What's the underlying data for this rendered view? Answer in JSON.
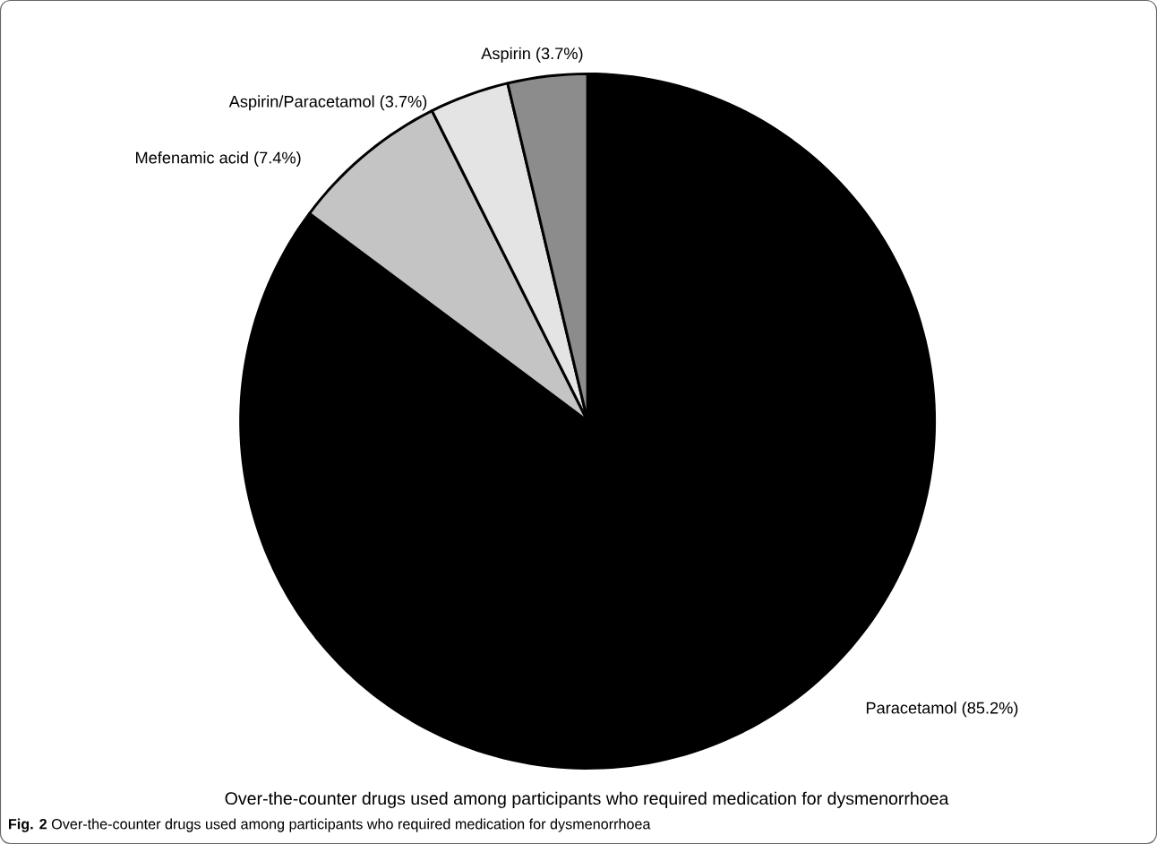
{
  "chart_data": {
    "type": "pie",
    "title": "Over-the-counter drugs used among participants who required medication for dysmenorrhoea",
    "categories": [
      "Paracetamol (85.2%)",
      "Mefenamic acid (7.4%)",
      "Aspirin/Paracetamol (3.7%)",
      "Aspirin  (3.7%)"
    ],
    "values": [
      85.2,
      7.4,
      3.7,
      3.7
    ],
    "colors": [
      "#000000",
      "#c4c4c4",
      "#e4e4e4",
      "#8c8c8c"
    ],
    "annotations": [
      "**Fig. 2** Over-the-counter drugs used among participants who required medication for dysmenorrhoea"
    ]
  }
}
